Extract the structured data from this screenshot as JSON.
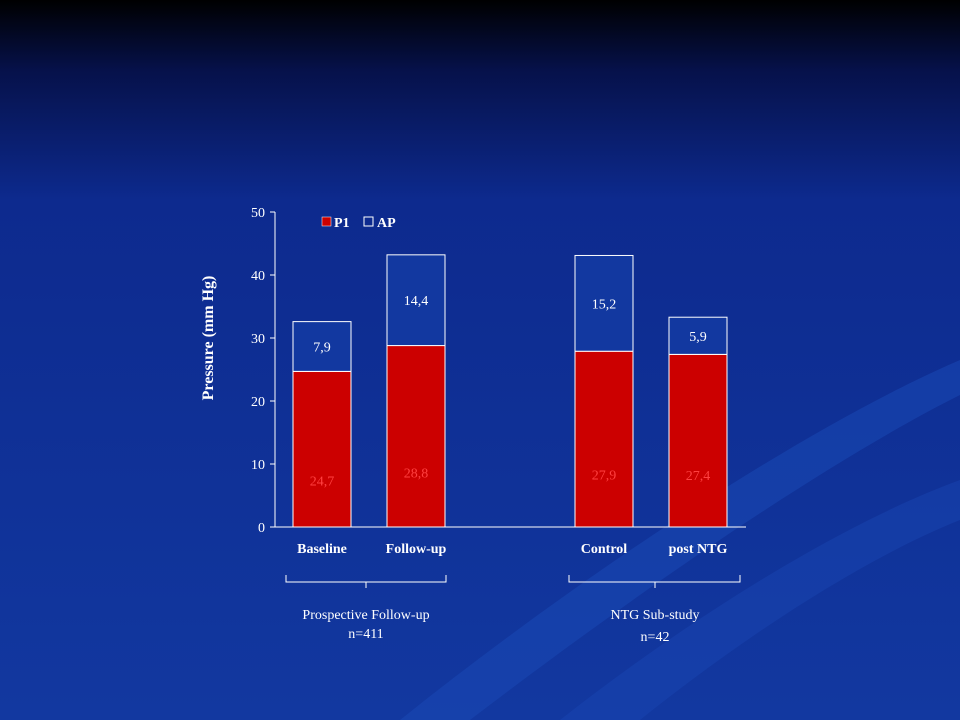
{
  "colors": {
    "p1": "#cc0000",
    "ap": "#1238a0",
    "axis": "#ffffff"
  },
  "chart_data": {
    "type": "bar",
    "stacked": true,
    "categories": [
      "Baseline",
      "Follow-up",
      "Control",
      "post NTG"
    ],
    "series": [
      {
        "name": "P1",
        "values": [
          24.7,
          28.8,
          27.9,
          27.4
        ],
        "labels": [
          "24,7",
          "28,8",
          "27,9",
          "27,4"
        ]
      },
      {
        "name": "AP",
        "values": [
          7.9,
          14.4,
          15.2,
          5.9
        ],
        "labels": [
          "7,9",
          "14,4",
          "15,2",
          "5,9"
        ]
      }
    ],
    "ylabel": "Pressure (mm Hg)",
    "ylim": [
      0,
      50
    ],
    "yticks": [
      0,
      10,
      20,
      30,
      40,
      50
    ],
    "legend": "top-left",
    "grid": false
  },
  "groups": [
    {
      "name": "Prospective  Follow-up",
      "n": "n=411"
    },
    {
      "name": "NTG Sub-study",
      "n": "n=42"
    }
  ]
}
